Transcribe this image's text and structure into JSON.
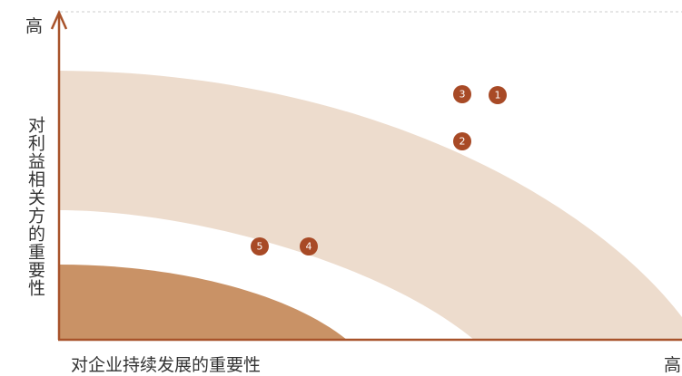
{
  "y_axis": {
    "label": "对利益相关方的重要性",
    "high": "高"
  },
  "x_axis": {
    "label": "对企业持续发展的重要性",
    "high": "高"
  },
  "nodes": [
    {
      "label": "1"
    },
    {
      "label": "2"
    },
    {
      "label": "3"
    },
    {
      "label": "4"
    },
    {
      "label": "5"
    }
  ]
}
